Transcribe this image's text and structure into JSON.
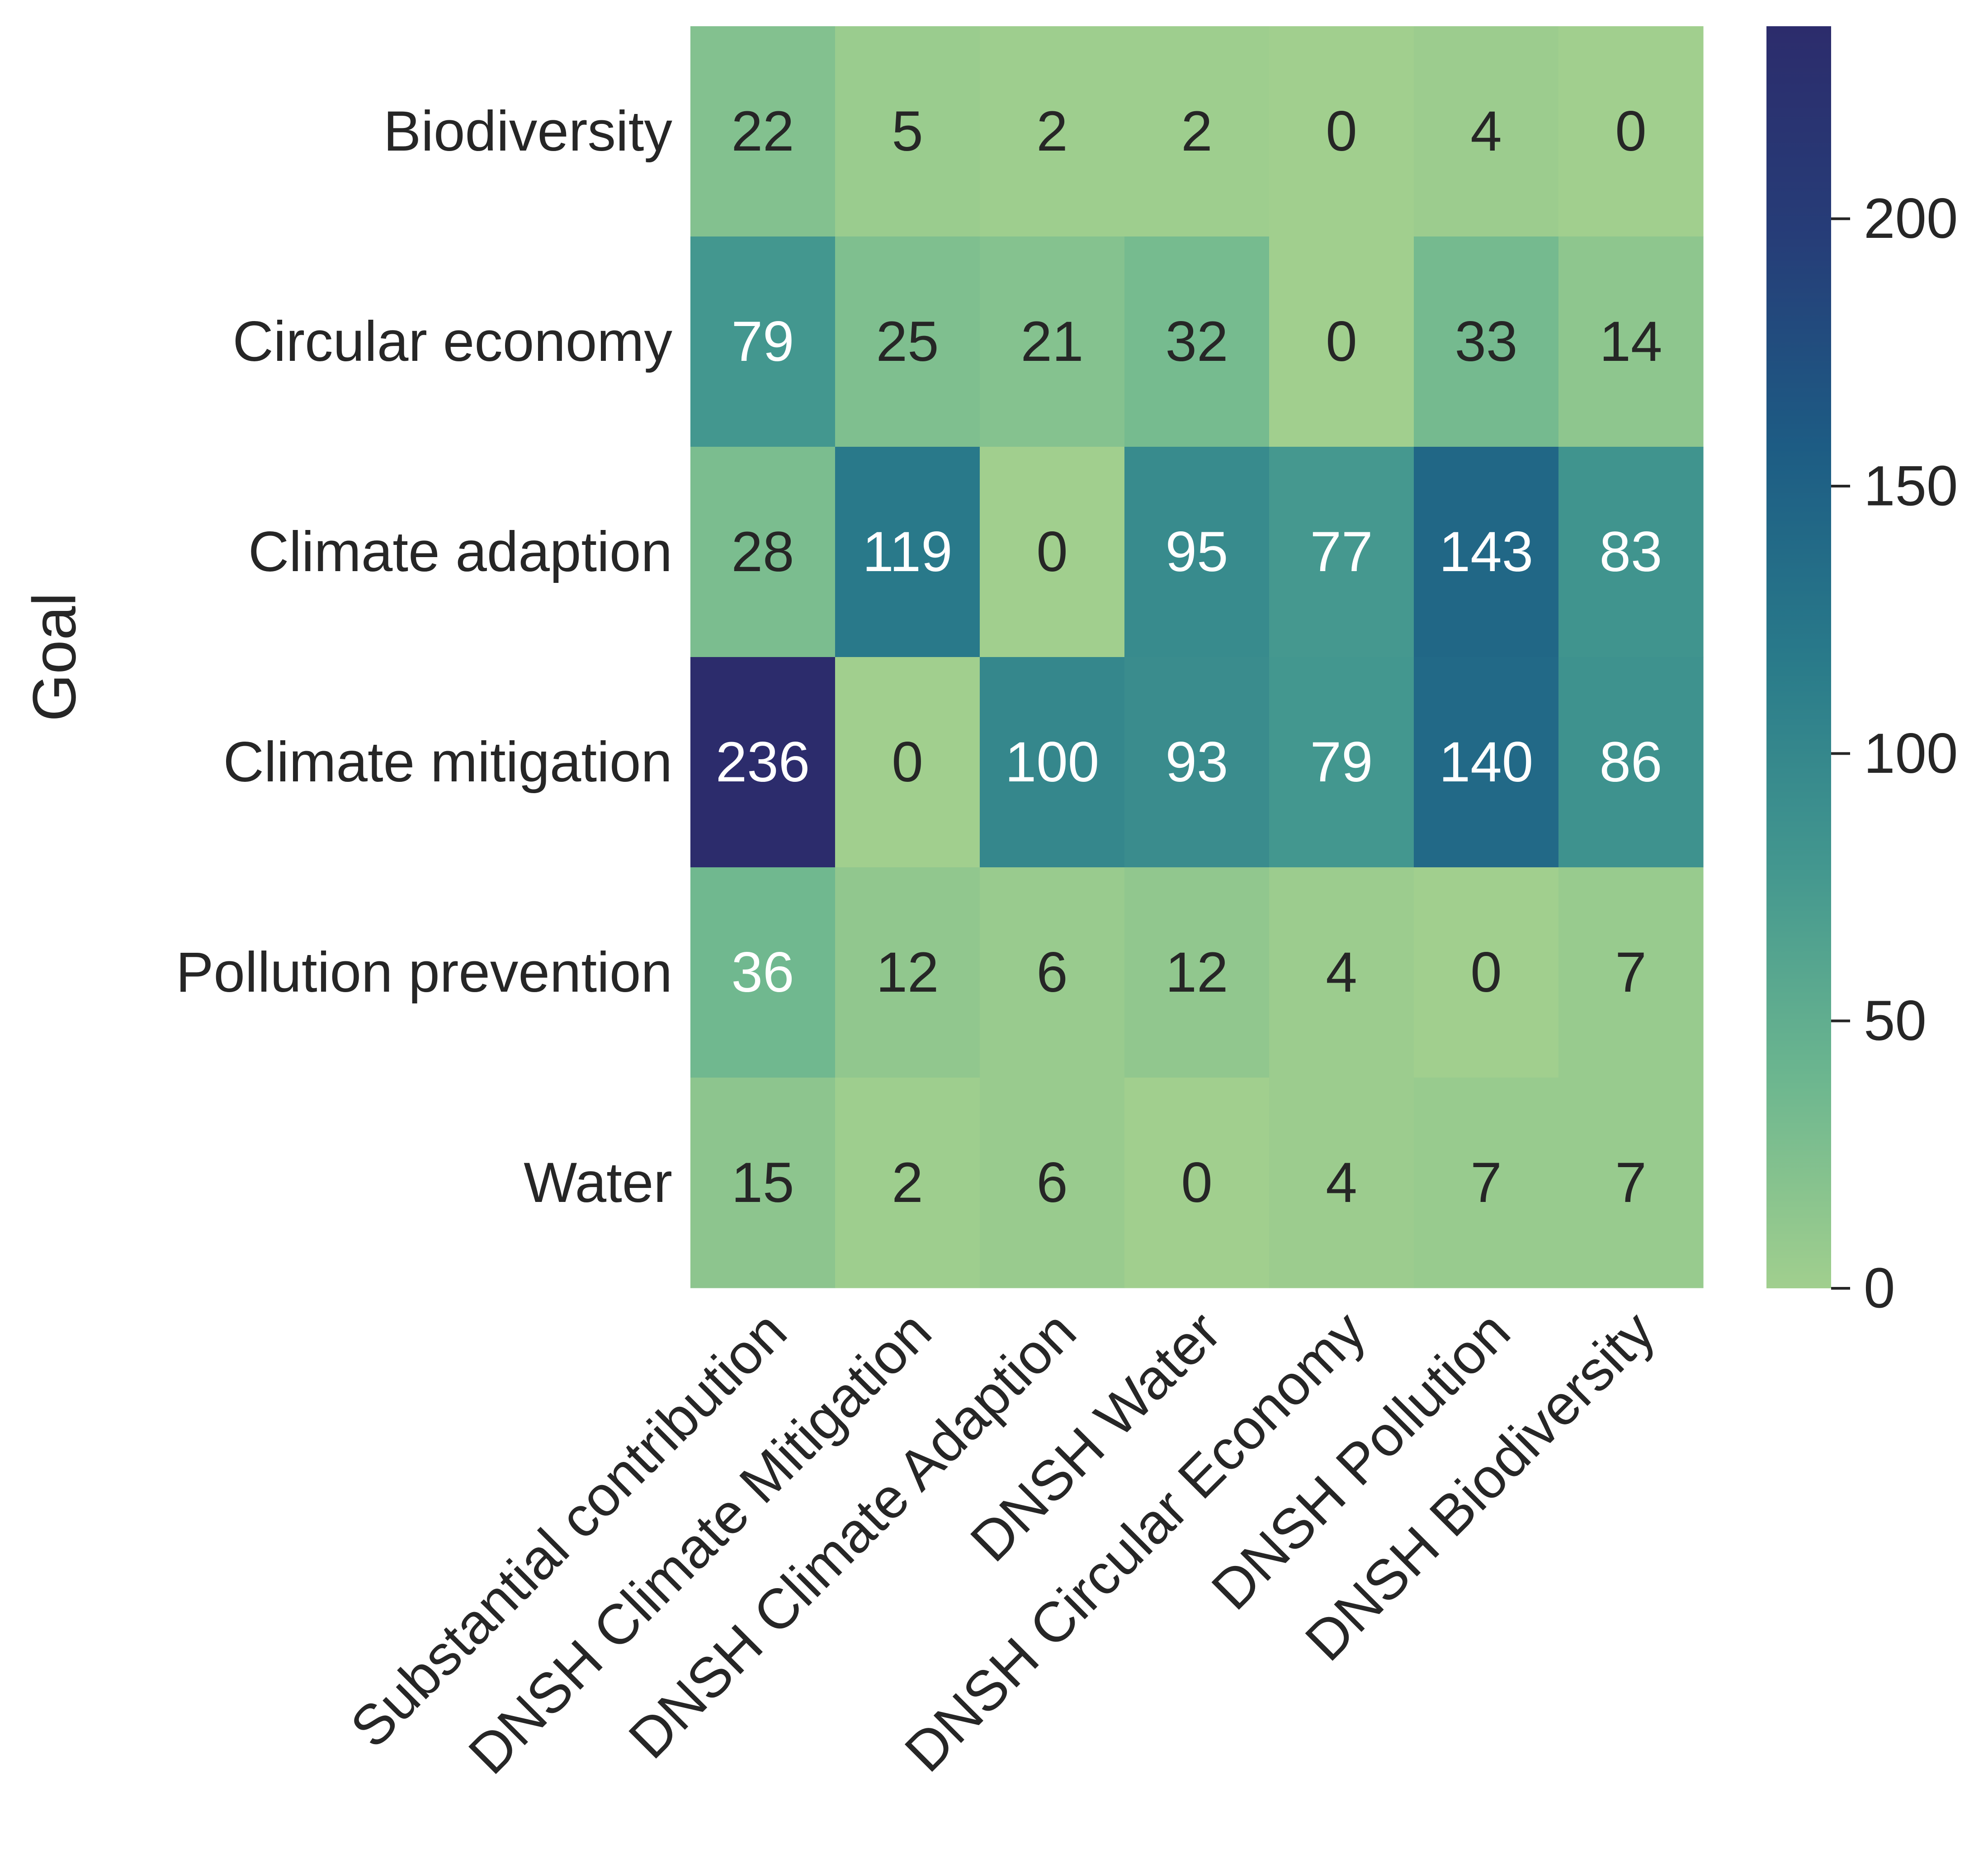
{
  "chart_data": {
    "type": "heatmap",
    "title": "",
    "xlabel": "",
    "ylabel": "Goal",
    "rows": [
      "Biodiversity",
      "Circular economy",
      "Climate adaption",
      "Climate mitigation",
      "Pollution prevention",
      "Water"
    ],
    "columns": [
      "Substantial contribution",
      "DNSH Climate Mitigation",
      "DNSH Climate Adaption",
      "DNSH Water",
      "DNSH Circular Economy",
      "DNSH Pollution",
      "DNSH Biodiversity"
    ],
    "values": [
      [
        22,
        5,
        2,
        2,
        0,
        4,
        0
      ],
      [
        79,
        25,
        21,
        32,
        0,
        33,
        14
      ],
      [
        28,
        119,
        0,
        95,
        77,
        143,
        83
      ],
      [
        236,
        0,
        100,
        93,
        79,
        140,
        86
      ],
      [
        36,
        12,
        6,
        12,
        4,
        0,
        7
      ],
      [
        15,
        2,
        6,
        0,
        4,
        7,
        7
      ]
    ],
    "colorbar": {
      "min": 0,
      "max": 236,
      "ticks": [
        0,
        50,
        100,
        150,
        200
      ],
      "colormap": "crest",
      "colors": [
        "#a1cf8e",
        "#6cb68f",
        "#43978f",
        "#297a8a",
        "#1d5c84",
        "#263d78",
        "#2c2c6c"
      ]
    },
    "annotation_colors": {
      "dark_text": "#262626",
      "light_text": "#ffffff"
    },
    "grid": false,
    "legend": "colorbar-right"
  }
}
